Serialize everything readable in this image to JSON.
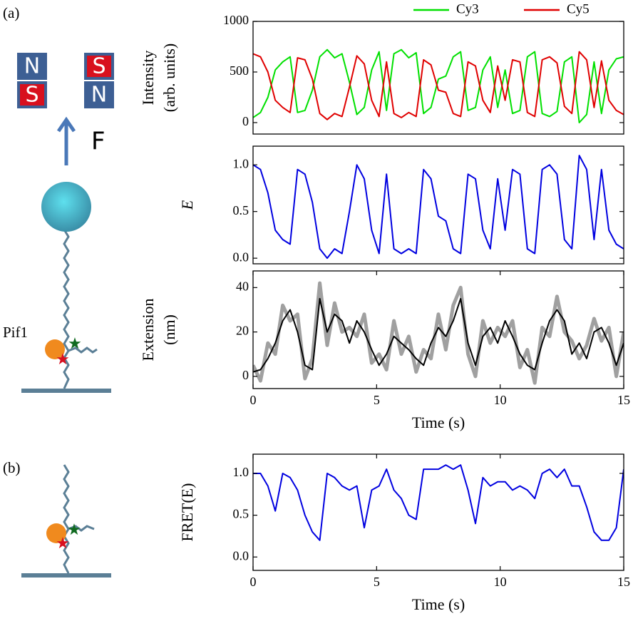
{
  "panel_labels": [
    "(a)",
    "(b)"
  ],
  "schematic": {
    "magnets": [
      [
        "N",
        "S"
      ],
      [
        "S",
        "N"
      ]
    ],
    "force": "F",
    "protein": "Pif1"
  },
  "chart_data": [
    {
      "type": "line",
      "ylabel": [
        "Intensity",
        "(arb. units)"
      ],
      "x": [
        0,
        0.3,
        0.6,
        0.9,
        1.2,
        1.5,
        1.8,
        2.1,
        2.4,
        2.7,
        3,
        3.3,
        3.6,
        3.9,
        4.2,
        4.5,
        4.8,
        5.1,
        5.4,
        5.7,
        6,
        6.3,
        6.6,
        6.9,
        7.2,
        7.5,
        7.8,
        8.1,
        8.4,
        8.7,
        9,
        9.3,
        9.6,
        9.9,
        10.2,
        10.5,
        10.8,
        11.1,
        11.4,
        11.7,
        12,
        12.3,
        12.6,
        12.9,
        13.2,
        13.5,
        13.8,
        14.1,
        14.4,
        14.7,
        15
      ],
      "series": [
        {
          "name": "Cy3",
          "color": "#00e000",
          "values": [
            50,
            100,
            250,
            520,
            600,
            650,
            100,
            120,
            320,
            650,
            720,
            640,
            680,
            400,
            80,
            150,
            520,
            700,
            120,
            680,
            720,
            640,
            690,
            90,
            150,
            430,
            460,
            650,
            700,
            120,
            150,
            520,
            650,
            150,
            520,
            90,
            120,
            650,
            700,
            90,
            60,
            110,
            600,
            650,
            0,
            80,
            600,
            90,
            520,
            630,
            650
          ]
        },
        {
          "name": "Cy5",
          "color": "#e00000",
          "values": [
            680,
            650,
            500,
            220,
            150,
            100,
            640,
            620,
            430,
            90,
            30,
            90,
            60,
            350,
            660,
            580,
            220,
            60,
            600,
            90,
            50,
            100,
            60,
            620,
            570,
            320,
            300,
            90,
            60,
            600,
            560,
            220,
            100,
            560,
            220,
            620,
            600,
            100,
            60,
            620,
            650,
            590,
            160,
            90,
            700,
            620,
            150,
            610,
            220,
            120,
            80
          ]
        }
      ],
      "xlim": [
        0,
        15
      ],
      "ylim": [
        -113,
        1000
      ],
      "yticks": [
        0,
        500,
        1000
      ],
      "legend": "top-right"
    },
    {
      "type": "line",
      "ylabel": [
        "E"
      ],
      "x": [
        0,
        0.3,
        0.6,
        0.9,
        1.2,
        1.5,
        1.8,
        2.1,
        2.4,
        2.7,
        3,
        3.3,
        3.6,
        3.9,
        4.2,
        4.5,
        4.8,
        5.1,
        5.4,
        5.7,
        6,
        6.3,
        6.6,
        6.9,
        7.2,
        7.5,
        7.8,
        8.1,
        8.4,
        8.7,
        9,
        9.3,
        9.6,
        9.9,
        10.2,
        10.5,
        10.8,
        11.1,
        11.4,
        11.7,
        12,
        12.3,
        12.6,
        12.9,
        13.2,
        13.5,
        13.8,
        14.1,
        14.4,
        14.7,
        15
      ],
      "series": [
        {
          "color": "#0000e0",
          "values": [
            1.0,
            0.95,
            0.7,
            0.3,
            0.2,
            0.15,
            0.95,
            0.9,
            0.6,
            0.1,
            0.0,
            0.1,
            0.05,
            0.5,
            1.0,
            0.85,
            0.3,
            0.05,
            0.9,
            0.1,
            0.05,
            0.1,
            0.05,
            0.95,
            0.85,
            0.45,
            0.4,
            0.1,
            0.05,
            0.9,
            0.85,
            0.3,
            0.1,
            0.85,
            0.3,
            0.95,
            0.9,
            0.1,
            0.05,
            0.95,
            1.0,
            0.9,
            0.2,
            0.1,
            1.1,
            0.95,
            0.2,
            0.95,
            0.3,
            0.15,
            0.1
          ]
        }
      ],
      "xlim": [
        0,
        15
      ],
      "ylim": [
        -0.06,
        1.2
      ],
      "yticks": [
        {
          "value": 0,
          "label": "0.0"
        },
        {
          "value": 0.5,
          "label": "0.5"
        },
        {
          "value": 1,
          "label": "1.0"
        }
      ]
    },
    {
      "type": "line",
      "ylabel": [
        "Extension",
        "(nm)"
      ],
      "xlabel": "Time (s)",
      "x": [
        0,
        0.3,
        0.6,
        0.9,
        1.2,
        1.5,
        1.8,
        2.1,
        2.4,
        2.7,
        3,
        3.3,
        3.6,
        3.9,
        4.2,
        4.5,
        4.8,
        5.1,
        5.4,
        5.7,
        6,
        6.3,
        6.6,
        6.9,
        7.2,
        7.5,
        7.8,
        8.1,
        8.4,
        8.7,
        9,
        9.3,
        9.6,
        9.9,
        10.2,
        10.5,
        10.8,
        11.1,
        11.4,
        11.7,
        12,
        12.3,
        12.6,
        12.9,
        13.2,
        13.5,
        13.8,
        14.1,
        14.4,
        14.7,
        15
      ],
      "series": [
        {
          "color": "#a0a0a0",
          "values": [
            5,
            -2,
            15,
            10,
            32,
            25,
            28,
            -1,
            8,
            42,
            14,
            33,
            20,
            22,
            18,
            28,
            6,
            10,
            3,
            25,
            10,
            18,
            2,
            12,
            8,
            28,
            12,
            32,
            40,
            10,
            0,
            25,
            15,
            22,
            18,
            25,
            4,
            12,
            -3,
            22,
            18,
            36,
            20,
            16,
            8,
            14,
            26,
            16,
            22,
            0,
            20
          ]
        },
        {
          "color": "#000000",
          "values": [
            2,
            3,
            8,
            15,
            25,
            30,
            20,
            5,
            3,
            35,
            20,
            28,
            25,
            15,
            25,
            20,
            12,
            5,
            10,
            18,
            15,
            12,
            8,
            5,
            15,
            22,
            18,
            25,
            35,
            15,
            5,
            18,
            22,
            15,
            25,
            18,
            10,
            5,
            3,
            15,
            25,
            30,
            25,
            10,
            15,
            8,
            20,
            22,
            15,
            5,
            15
          ]
        }
      ],
      "xlim": [
        0,
        15
      ],
      "ylim": [
        -5.5,
        47.5
      ],
      "yticks": [
        0,
        20,
        40
      ],
      "xticks": [
        0,
        5,
        10,
        15
      ]
    },
    {
      "type": "line",
      "ylabel": [
        "FRET(E)"
      ],
      "xlabel": "Time (s)",
      "x": [
        0,
        0.3,
        0.6,
        0.9,
        1.2,
        1.5,
        1.8,
        2.1,
        2.4,
        2.7,
        3,
        3.3,
        3.6,
        3.9,
        4.2,
        4.5,
        4.8,
        5.1,
        5.4,
        5.7,
        6,
        6.3,
        6.6,
        6.9,
        7.2,
        7.5,
        7.8,
        8.1,
        8.4,
        8.7,
        9,
        9.3,
        9.6,
        9.9,
        10.2,
        10.5,
        10.8,
        11.1,
        11.4,
        11.7,
        12,
        12.3,
        12.6,
        12.9,
        13.2,
        13.5,
        13.8,
        14.1,
        14.4,
        14.7,
        15
      ],
      "series": [
        {
          "color": "#0000e0",
          "values": [
            1.0,
            1.0,
            0.85,
            0.55,
            1.0,
            0.95,
            0.8,
            0.5,
            0.3,
            0.2,
            1.0,
            0.95,
            0.85,
            0.8,
            0.85,
            0.35,
            0.8,
            0.85,
            1.05,
            0.8,
            0.7,
            0.5,
            0.45,
            1.05,
            1.05,
            1.05,
            1.1,
            1.05,
            1.1,
            0.8,
            0.4,
            0.95,
            0.85,
            0.9,
            0.9,
            0.8,
            0.85,
            0.8,
            0.7,
            1.0,
            1.05,
            0.95,
            1.05,
            0.85,
            0.85,
            0.6,
            0.3,
            0.2,
            0.2,
            0.35,
            1.05
          ]
        }
      ],
      "xlim": [
        0,
        15
      ],
      "ylim": [
        -0.16,
        1.23
      ],
      "yticks": [
        {
          "value": 0,
          "label": "0.0"
        },
        {
          "value": 0.5,
          "label": "0.5"
        },
        {
          "value": 1,
          "label": "1.0"
        }
      ],
      "xticks": [
        0,
        5,
        10,
        15
      ]
    }
  ]
}
